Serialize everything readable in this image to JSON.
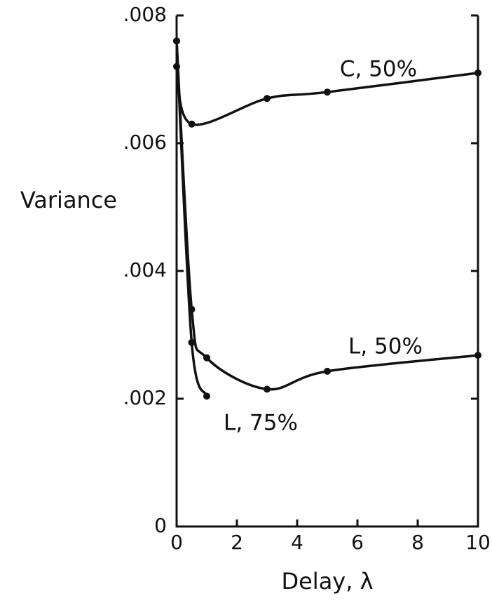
{
  "chart_data": {
    "type": "line",
    "ylabel": "Variance",
    "xlabel": "Delay, λ",
    "xlim": [
      0,
      10
    ],
    "xticks": [
      0,
      2,
      4,
      6,
      8,
      10
    ],
    "ylim": [
      0,
      0.008
    ],
    "yticks": [
      0,
      {
        "value": 0.002,
        "label": ".002"
      },
      {
        "value": 0.004,
        "label": ".004"
      },
      {
        "value": 0.006,
        "label": ".006"
      },
      {
        "value": 0.008,
        "label": ".008"
      }
    ],
    "series": [
      {
        "name": "C, 50%",
        "color": "#111111",
        "x": [
          0,
          0.5,
          3,
          5,
          10
        ],
        "values": [
          0.0072,
          0.0063,
          0.0067,
          0.0068,
          0.0071
        ]
      },
      {
        "name": "L, 50%",
        "color": "#111111",
        "x": [
          0,
          0.5,
          1,
          3,
          5,
          10
        ],
        "values": [
          0.0076,
          0.0034,
          0.00264,
          0.00215,
          0.00243,
          0.00268
        ]
      },
      {
        "name": "L, 75%",
        "color": "#111111",
        "x": [
          0,
          0.5,
          1
        ],
        "values": [
          0.0076,
          0.00288,
          0.00204
        ]
      }
    ]
  }
}
